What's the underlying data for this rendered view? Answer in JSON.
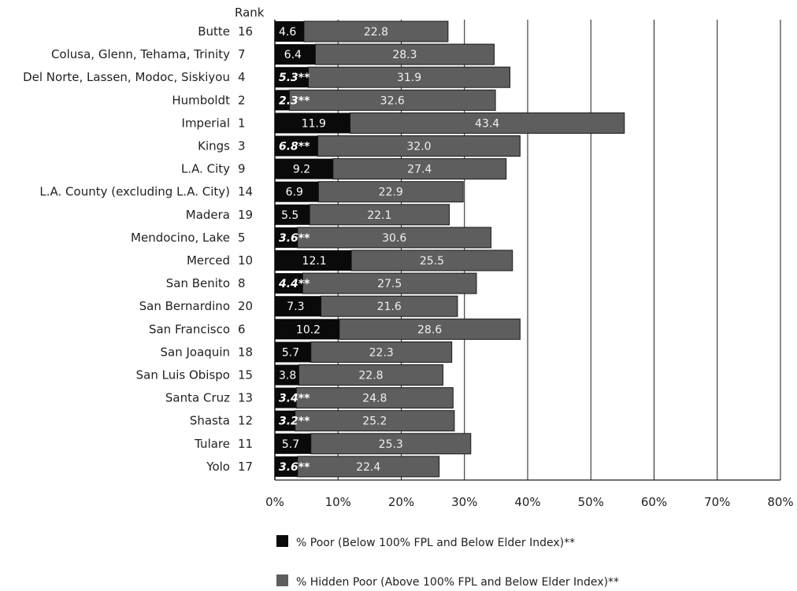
{
  "chart_data": {
    "type": "bar",
    "orientation": "horizontal",
    "stacked": true,
    "rank_header": "Rank",
    "categories": [
      "Butte",
      "Colusa, Glenn, Tehama, Trinity",
      "Del Norte, Lassen, Modoc, Siskiyou",
      "Humboldt",
      "Imperial",
      "Kings",
      "L.A. City",
      "L.A. County (excluding L.A. City)",
      "Madera",
      "Mendocino, Lake",
      "Merced",
      "San Benito",
      "San Bernardino",
      "San Francisco",
      "San Joaquin",
      "San Luis Obispo",
      "Santa Cruz",
      "Shasta",
      "Tulare",
      "Yolo"
    ],
    "ranks": [
      "16",
      "7",
      "4",
      "2",
      "1",
      "3",
      "9",
      "14",
      "19",
      "5",
      "10",
      "8",
      "20",
      "6",
      "18",
      "15",
      "13",
      "12",
      "11",
      "17"
    ],
    "series": [
      {
        "name": "% Poor (Below 100% FPL and Below Elder Index)**",
        "color": "#0a0a0a",
        "values": [
          4.6,
          6.4,
          5.3,
          2.3,
          11.9,
          6.8,
          9.2,
          6.9,
          5.5,
          3.6,
          12.1,
          4.4,
          7.3,
          10.2,
          5.7,
          3.8,
          3.4,
          3.2,
          5.7,
          3.6
        ],
        "labels": [
          "4.6",
          "6.4",
          "5.3**",
          "2.3**",
          "11.9",
          "6.8**",
          "9.2",
          "6.9",
          "5.5",
          "3.6**",
          "12.1",
          "4.4**",
          "7.3",
          "10.2",
          "5.7",
          "3.8",
          "3.4**",
          "3.2**",
          "5.7",
          "3.6**"
        ]
      },
      {
        "name": "% Hidden Poor (Above 100% FPL and Below Elder Index)**",
        "color": "#5e5e5e",
        "values": [
          22.8,
          28.3,
          31.9,
          32.6,
          43.4,
          32.0,
          27.4,
          22.9,
          22.1,
          30.6,
          25.5,
          27.5,
          21.6,
          28.6,
          22.3,
          22.8,
          24.8,
          25.2,
          25.3,
          22.4
        ],
        "labels": [
          "22.8",
          "28.3",
          "31.9",
          "32.6",
          "43.4",
          "32.0",
          "27.4",
          "22.9",
          "22.1",
          "30.6",
          "25.5",
          "27.5",
          "21.6",
          "28.6",
          "22.3",
          "22.8",
          "24.8",
          "25.2",
          "25.3",
          "22.4"
        ]
      }
    ],
    "x_ticks": [
      "0%",
      "10%",
      "20%",
      "30%",
      "40%",
      "50%",
      "60%",
      "70%",
      "80%"
    ],
    "xlim": [
      0,
      80
    ],
    "gridlines": "vertical",
    "legend_position": "bottom-center"
  }
}
